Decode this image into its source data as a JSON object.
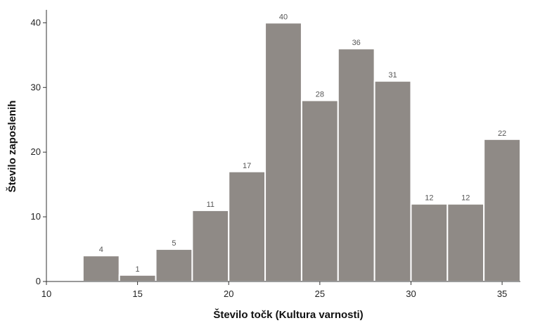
{
  "chart_data": {
    "type": "bar",
    "variant": "histogram",
    "title": "",
    "xlabel": "Število točk (Kultura varnosti)",
    "ylabel": "Število zaposlenih",
    "bin_start": 12,
    "bin_width": 2,
    "values": [
      4,
      1,
      5,
      11,
      17,
      40,
      28,
      36,
      31,
      12,
      12,
      22
    ],
    "xlim": [
      10,
      36
    ],
    "ylim": [
      0,
      42
    ],
    "x_ticks": [
      10,
      15,
      20,
      25,
      30,
      35
    ],
    "y_ticks": [
      0,
      10,
      20,
      30,
      40
    ],
    "grid": false,
    "bar_color": "#8f8a86",
    "bar_edge_color": "#ffffff"
  }
}
